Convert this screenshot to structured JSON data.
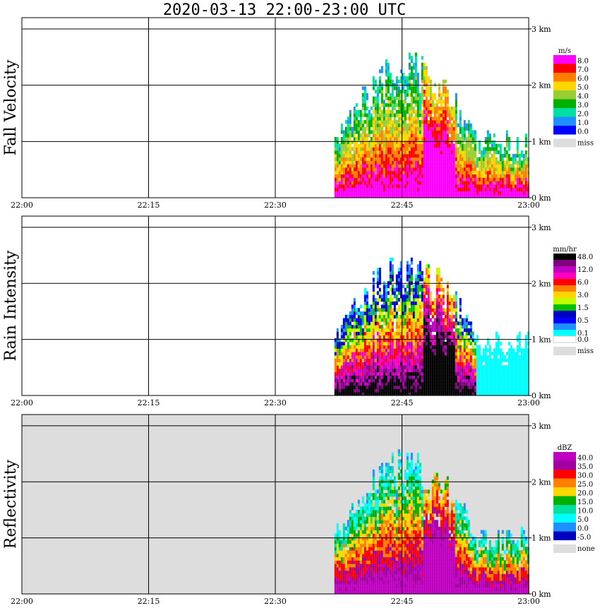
{
  "title": "2020-03-13   22:00-23:00 UTC",
  "chart_data": [
    {
      "type": "heatmap",
      "ylabel": "Fall Velocity",
      "x_ticks": [
        "22:00",
        "22:15",
        "22:30",
        "22:45",
        "23:00"
      ],
      "y_ticks": [
        "0 km",
        "1 km",
        "2 km",
        "3 km"
      ],
      "xlim": [
        "22:00",
        "23:00"
      ],
      "ylim_km": [
        0,
        3.2
      ],
      "grid": true,
      "legend_placement": "right",
      "legend_title": "m/s",
      "legend": [
        {
          "label": "8.0",
          "color": "#ff00ff"
        },
        {
          "label": "7.0",
          "color": "#ff0000"
        },
        {
          "label": "6.0",
          "color": "#ff7f00"
        },
        {
          "label": "5.0",
          "color": "#ffd700"
        },
        {
          "label": "4.0",
          "color": "#9acd32"
        },
        {
          "label": "3.0",
          "color": "#00b000"
        },
        {
          "label": "2.0",
          "color": "#00e0a0"
        },
        {
          "label": "1.0",
          "color": "#1e90ff"
        },
        {
          "label": "0.0",
          "color": "#0000ff"
        }
      ],
      "legend_missing": {
        "label": "miss",
        "color": "#dddddd"
      },
      "background": "#ffffff",
      "echo_start_time": "22:37",
      "echo_top_km": 2.6
    },
    {
      "type": "heatmap",
      "ylabel": "Rain Intensity",
      "x_ticks": [
        "22:00",
        "22:15",
        "22:30",
        "22:45",
        "23:00"
      ],
      "y_ticks": [
        "0 km",
        "1 km",
        "2 km",
        "3 km"
      ],
      "xlim": [
        "22:00",
        "23:00"
      ],
      "ylim_km": [
        0,
        3.2
      ],
      "grid": true,
      "legend_placement": "right",
      "legend_title": "mm/hr",
      "legend": [
        {
          "label": "48.0",
          "color": "#000000"
        },
        {
          "label": "",
          "color": "#800080"
        },
        {
          "label": "12.0",
          "color": "#c000c0"
        },
        {
          "label": "",
          "color": "#ff00c0"
        },
        {
          "label": "6.0",
          "color": "#ff0000"
        },
        {
          "label": "",
          "color": "#ff8000"
        },
        {
          "label": "3.0",
          "color": "#ffd700"
        },
        {
          "label": "",
          "color": "#c0ff00"
        },
        {
          "label": "1.5",
          "color": "#00c000"
        },
        {
          "label": "",
          "color": "#0000c0"
        },
        {
          "label": "0.5",
          "color": "#0000ff"
        },
        {
          "label": "",
          "color": "#1e90ff"
        },
        {
          "label": "0.1",
          "color": "#00ffff"
        },
        {
          "label": "0.0",
          "color": "#ffffff"
        }
      ],
      "legend_missing": {
        "label": "miss",
        "color": "#dddddd"
      },
      "background": "#ffffff",
      "echo_start_time": "22:37",
      "echo_top_km": 2.6
    },
    {
      "type": "heatmap",
      "ylabel": "Reflectivity",
      "x_ticks": [
        "22:00",
        "22:15",
        "22:30",
        "22:45",
        "23:00"
      ],
      "y_ticks": [
        "0 km",
        "1 km",
        "2 km",
        "3 km"
      ],
      "xlim": [
        "22:00",
        "23:00"
      ],
      "ylim_km": [
        0,
        3.2
      ],
      "grid": true,
      "legend_placement": "right",
      "legend_title": "dBZ",
      "legend": [
        {
          "label": "40.0",
          "color": "#c000c0"
        },
        {
          "label": "35.0",
          "color": "#a000a0"
        },
        {
          "label": "30.0",
          "color": "#ff0000"
        },
        {
          "label": "25.0",
          "color": "#ff7f00"
        },
        {
          "label": "20.0",
          "color": "#ffd700"
        },
        {
          "label": "15.0",
          "color": "#00b000"
        },
        {
          "label": "10.0",
          "color": "#00e0a0"
        },
        {
          "label": "5.0",
          "color": "#00ffff"
        },
        {
          "label": "0.0",
          "color": "#1e90ff"
        },
        {
          "label": "-5.0",
          "color": "#0000c0"
        }
      ],
      "legend_missing": {
        "label": "none",
        "color": "#dddddd"
      },
      "background": "#dddddd",
      "echo_start_time": "22:37",
      "echo_top_km": 2.6
    }
  ]
}
